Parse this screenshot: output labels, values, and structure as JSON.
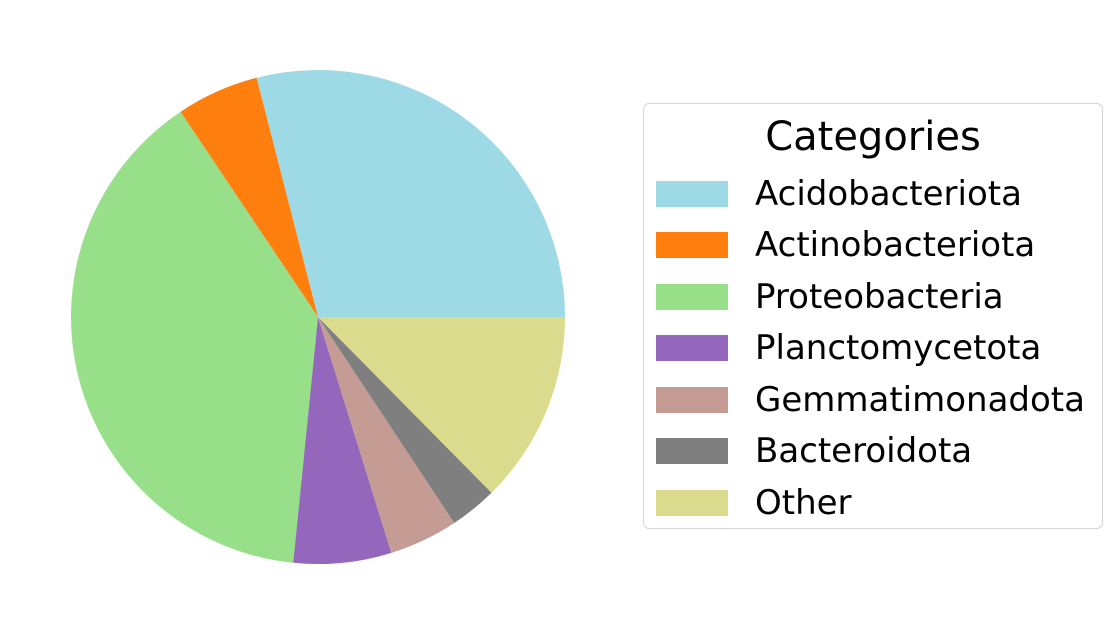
{
  "chart_data": {
    "type": "pie",
    "title": "",
    "legend": {
      "title": "Categories",
      "placement": "right"
    },
    "start_angle_degrees": 0,
    "direction": "counterclockwise",
    "slices": [
      {
        "label": "Acidobacteriota",
        "value": 29.0,
        "color": "#9edae5"
      },
      {
        "label": "Actinobacteriota",
        "value": 5.4,
        "color": "#ff7f0e"
      },
      {
        "label": "Proteobacteria",
        "value": 39.0,
        "color": "#98df8a"
      },
      {
        "label": "Planctomycetota",
        "value": 6.4,
        "color": "#9467bd"
      },
      {
        "label": "Gemmatimonadota",
        "value": 4.5,
        "color": "#c49c94"
      },
      {
        "label": "Bacteroidota",
        "value": 3.1,
        "color": "#7f7f7f"
      },
      {
        "label": "Other",
        "value": 12.6,
        "color": "#dbdb8d"
      }
    ]
  }
}
